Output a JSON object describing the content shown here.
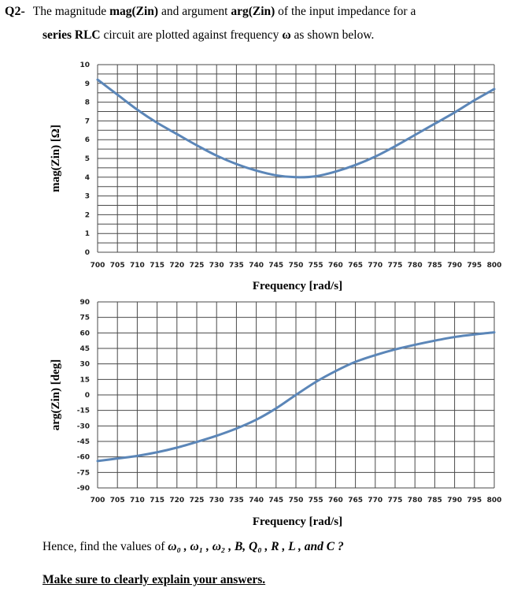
{
  "question": {
    "number": "Q2-",
    "line1_a": "The magnitude ",
    "line1_b": "mag(Zin)",
    "line1_c": " and argument ",
    "line1_d": "arg(Zin)",
    "line1_e": " of the input impedance for a",
    "line2_a": "series RLC",
    "line2_b": " circuit are plotted against frequency ",
    "line2_omega": "ω",
    "line2_c": " as shown below."
  },
  "footer": {
    "hence": "Hence, find the values of ",
    "unknowns": "ω₀ , ω₁ , ω₂ , B, Q₀ , R , L , and C ?",
    "instruction": "Make sure to clearly explain your answers."
  },
  "chart_data": [
    {
      "type": "line",
      "title": "",
      "xlabel": "Frequency [rad/s]",
      "ylabel": "mag(Zin) [Ω]",
      "x_ticks": [
        "700",
        "705",
        "710",
        "715",
        "720",
        "725",
        "730",
        "735",
        "740",
        "745",
        "750",
        "755",
        "760",
        "765",
        "770",
        "775",
        "780",
        "785",
        "790",
        "795",
        "800"
      ],
      "y_ticks": [
        "0",
        "1",
        "2",
        "3",
        "4",
        "5",
        "6",
        "7",
        "8",
        "9",
        "10"
      ],
      "xlim": [
        700,
        800
      ],
      "ylim": [
        0,
        10
      ],
      "grid": true,
      "series": [
        {
          "name": "mag(Zin)",
          "color": "#5b86b8",
          "x": [
            700,
            705,
            710,
            715,
            720,
            725,
            730,
            735,
            740,
            745,
            750,
            755,
            760,
            765,
            770,
            775,
            780,
            785,
            790,
            795,
            800
          ],
          "y": [
            9.2,
            8.4,
            7.6,
            6.9,
            6.3,
            5.7,
            5.15,
            4.7,
            4.35,
            4.1,
            4.0,
            4.05,
            4.3,
            4.65,
            5.1,
            5.65,
            6.25,
            6.85,
            7.45,
            8.1,
            8.7
          ]
        }
      ]
    },
    {
      "type": "line",
      "title": "",
      "xlabel": "Frequency [rad/s]",
      "ylabel": "arg(Zin) [deg]",
      "x_ticks": [
        "700",
        "705",
        "710",
        "715",
        "720",
        "725",
        "730",
        "735",
        "740",
        "745",
        "750",
        "755",
        "760",
        "765",
        "770",
        "775",
        "780",
        "785",
        "790",
        "795",
        "800"
      ],
      "y_ticks": [
        "-90",
        "-75",
        "-60",
        "-45",
        "-30",
        "-15",
        "0",
        "15",
        "30",
        "45",
        "60",
        "75",
        "90"
      ],
      "xlim": [
        700,
        800
      ],
      "ylim": [
        -90,
        90
      ],
      "grid": true,
      "series": [
        {
          "name": "arg(Zin)",
          "color": "#5b86b8",
          "x": [
            700,
            705,
            710,
            715,
            720,
            725,
            730,
            735,
            740,
            745,
            750,
            755,
            760,
            765,
            770,
            775,
            780,
            785,
            790,
            795,
            800
          ],
          "y": [
            -64,
            -61.5,
            -59,
            -55.5,
            -51,
            -45.5,
            -39.5,
            -32.5,
            -24,
            -13,
            0,
            12.5,
            23,
            32,
            38.5,
            44,
            48.5,
            52.5,
            56,
            58.5,
            60.5
          ]
        }
      ]
    }
  ]
}
